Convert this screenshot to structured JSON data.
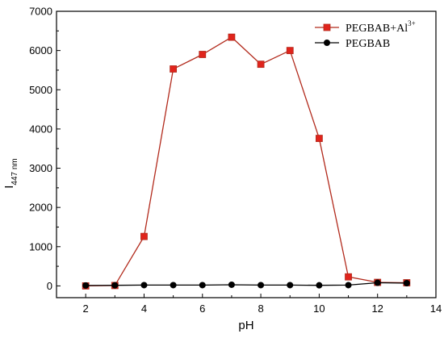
{
  "chart_data": {
    "type": "line",
    "title": "",
    "xlabel": "pH",
    "ylabel_main": "I",
    "ylabel_sub": "447 nm",
    "xlim": [
      1,
      14
    ],
    "ylim": [
      -300,
      7000
    ],
    "xticks": [
      2,
      4,
      6,
      8,
      10,
      12,
      14
    ],
    "yticks": [
      0,
      1000,
      2000,
      3000,
      4000,
      5000,
      6000,
      7000
    ],
    "grid": false,
    "legend_position": "top-right",
    "series": [
      {
        "name_base": "PEGBAB+Al",
        "name_sup": "3+",
        "color": "#b22a1c",
        "fill": "#e0241c",
        "marker": "square",
        "x": [
          2,
          3,
          4,
          5,
          6,
          7,
          8,
          9,
          10,
          11,
          12,
          13
        ],
        "y": [
          0,
          10,
          1260,
          5530,
          5900,
          6340,
          5650,
          6000,
          3760,
          230,
          90,
          80
        ]
      },
      {
        "name_base": "PEGBAB",
        "name_sup": "",
        "color": "#000000",
        "fill": "#000000",
        "marker": "circle",
        "x": [
          2,
          3,
          4,
          5,
          6,
          7,
          8,
          9,
          10,
          11,
          12,
          13
        ],
        "y": [
          10,
          15,
          20,
          20,
          20,
          30,
          20,
          20,
          15,
          20,
          80,
          70
        ]
      }
    ]
  }
}
